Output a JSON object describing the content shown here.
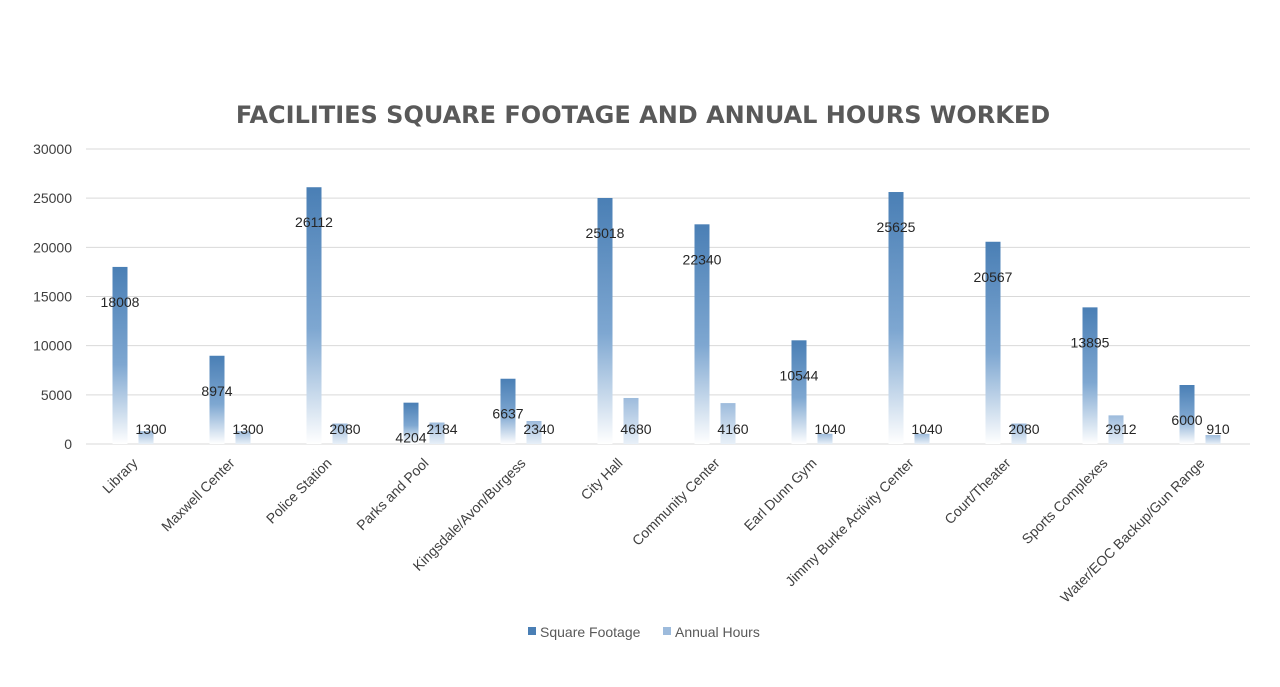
{
  "chart_data": {
    "type": "bar",
    "title": "FACILITIES SQUARE FOOTAGE AND ANNUAL HOURS WORKED",
    "xlabel": "",
    "ylabel": "",
    "ylim": [
      0,
      30000
    ],
    "yticks": [
      0,
      5000,
      10000,
      15000,
      20000,
      25000,
      30000
    ],
    "grid": true,
    "legend_position": "bottom",
    "categories": [
      "Library",
      "Maxwell Center",
      "Police Station",
      "Parks and Pool",
      "Kingsdale/Avon/Burgess",
      "City Hall",
      "Community Center",
      "Earl Dunn Gym",
      "Jimmy Burke Activity Center",
      "Court/Theater",
      "Sports Complexes",
      "Water/EOC Backup/Gun Range"
    ],
    "series": [
      {
        "name": "Square Footage",
        "color": "#4a7fb5",
        "values": [
          18008,
          8974,
          26112,
          4204,
          6637,
          25018,
          22340,
          10544,
          25625,
          20567,
          13895,
          6000
        ]
      },
      {
        "name": "Annual Hours",
        "color": "#9dbbdc",
        "values": [
          1300,
          1300,
          2080,
          2184,
          2340,
          4680,
          4160,
          1040,
          1040,
          2080,
          2912,
          910
        ]
      }
    ]
  }
}
